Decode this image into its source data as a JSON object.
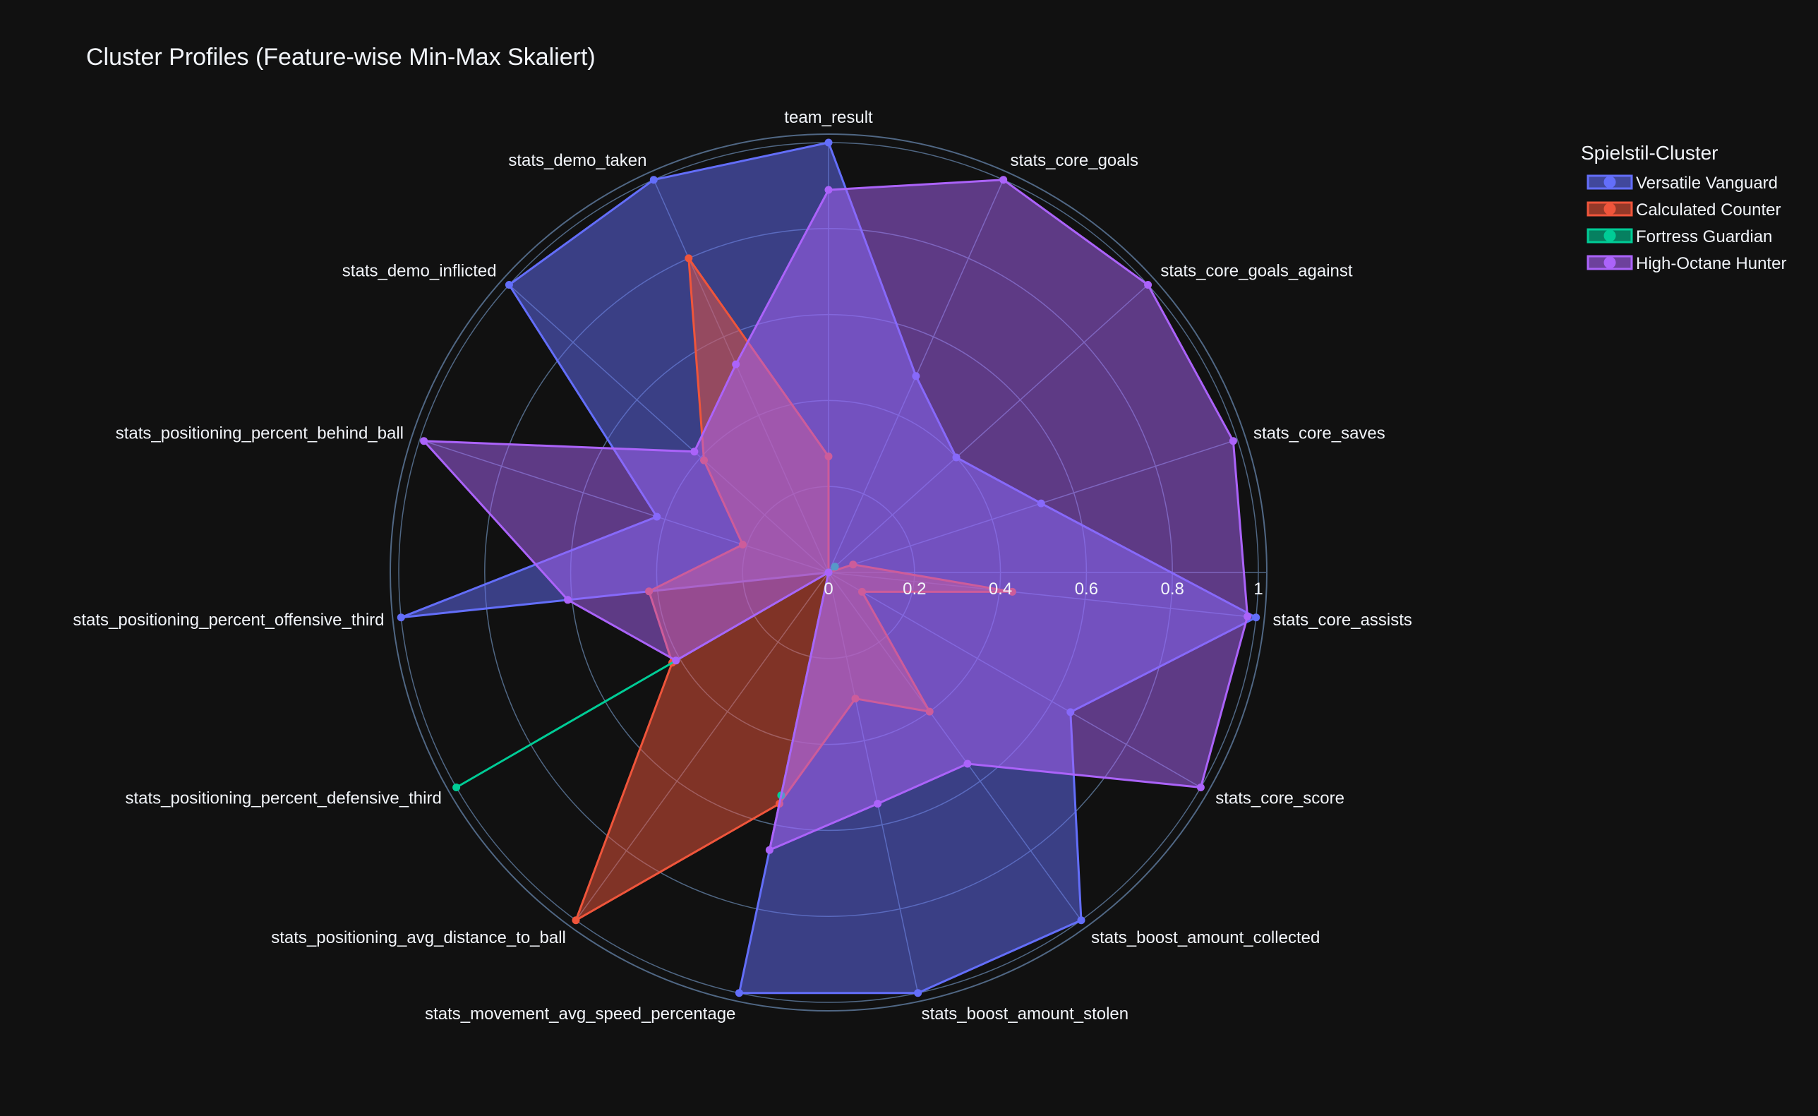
{
  "chart_data": {
    "type": "radar",
    "title": "Cluster Profiles (Feature-wise Min-Max Skaliert)",
    "legend_title": "Spielstil-Cluster",
    "legend_position": "top-right",
    "radial_range": [
      0,
      1
    ],
    "radial_ticks": [
      "0",
      "0.2",
      "0.4",
      "0.6",
      "0.8",
      "1"
    ],
    "grid": true,
    "categories": [
      "team_result",
      "stats_core_goals",
      "stats_core_goals_against",
      "stats_core_saves",
      "stats_core_assists",
      "stats_core_score",
      "stats_boost_amount_collected",
      "stats_boost_amount_stolen",
      "stats_movement_avg_speed_percentage",
      "stats_positioning_avg_distance_to_ball",
      "stats_positioning_percent_defensive_third",
      "stats_positioning_percent_offensive_third",
      "stats_positioning_percent_behind_ball",
      "stats_demo_inflicted",
      "stats_demo_taken"
    ],
    "series": [
      {
        "name": "Versatile Vanguard",
        "color": "#636efa",
        "values": [
          1.0,
          0.5,
          0.4,
          0.52,
          1.0,
          0.65,
          1.0,
          1.0,
          1.0,
          0.0,
          0.0,
          1.0,
          0.42,
          1.0,
          1.0
        ]
      },
      {
        "name": "Calculated Counter",
        "color": "#ef553b",
        "values": [
          0.27,
          0.0,
          0.0,
          0.06,
          0.43,
          0.09,
          0.4,
          0.3,
          0.55,
          1.0,
          0.42,
          0.42,
          0.21,
          0.39,
          0.8
        ]
      },
      {
        "name": "Fortress Guardian",
        "color": "#00cc96",
        "values": [
          0.0,
          0.0,
          0.02,
          0.0,
          0.0,
          0.0,
          0.0,
          0.0,
          0.53,
          0.0,
          1.0,
          0.0,
          0.0,
          0.0,
          0.0
        ]
      },
      {
        "name": "High-Octane Hunter",
        "color": "#ab63fa",
        "values": [
          0.89,
          1.0,
          1.0,
          0.99,
          0.98,
          1.0,
          0.55,
          0.55,
          0.66,
          0.0,
          0.41,
          0.61,
          0.99,
          0.42,
          0.53
        ]
      }
    ]
  }
}
